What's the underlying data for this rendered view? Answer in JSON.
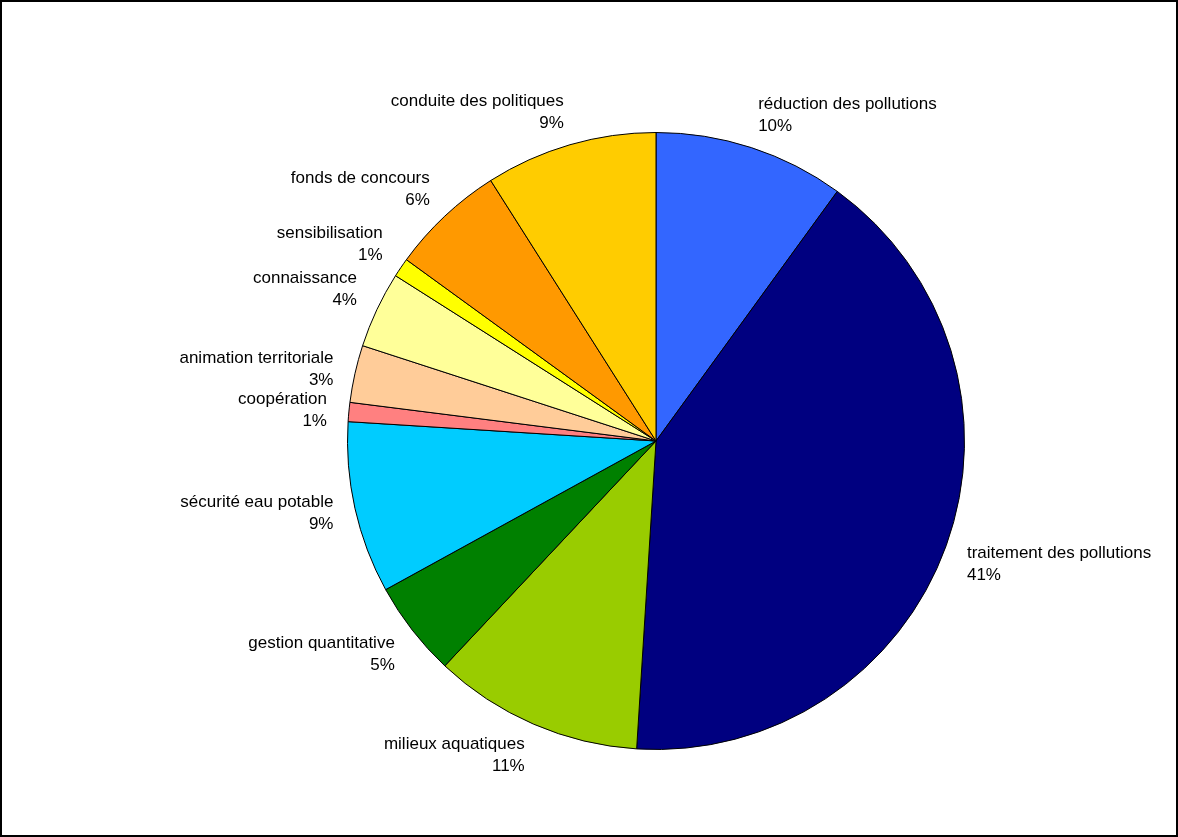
{
  "chart_data": {
    "type": "pie",
    "categories": [
      "réduction des pollutions",
      "traitement des pollutions",
      "milieux aquatiques",
      "gestion quantitative",
      "sécurité eau potable",
      "coopération",
      "animation territoriale",
      "connaissance",
      "sensibilisation",
      "fonds de concours",
      "conduite des politiques"
    ],
    "values": [
      10,
      41,
      11,
      5,
      9,
      1,
      3,
      4,
      1,
      6,
      9
    ],
    "colors": [
      "#3366ff",
      "#000080",
      "#99cc00",
      "#008000",
      "#00ccff",
      "#ff8080",
      "#ffcc99",
      "#ffff99",
      "#ffff00",
      "#ff9900",
      "#ffcc00"
    ],
    "value_labels": [
      "10%",
      "41%",
      "11%",
      "5%",
      "9%",
      "1%",
      "3%",
      "4%",
      "1%",
      "6%",
      "9%"
    ],
    "legend": false
  }
}
